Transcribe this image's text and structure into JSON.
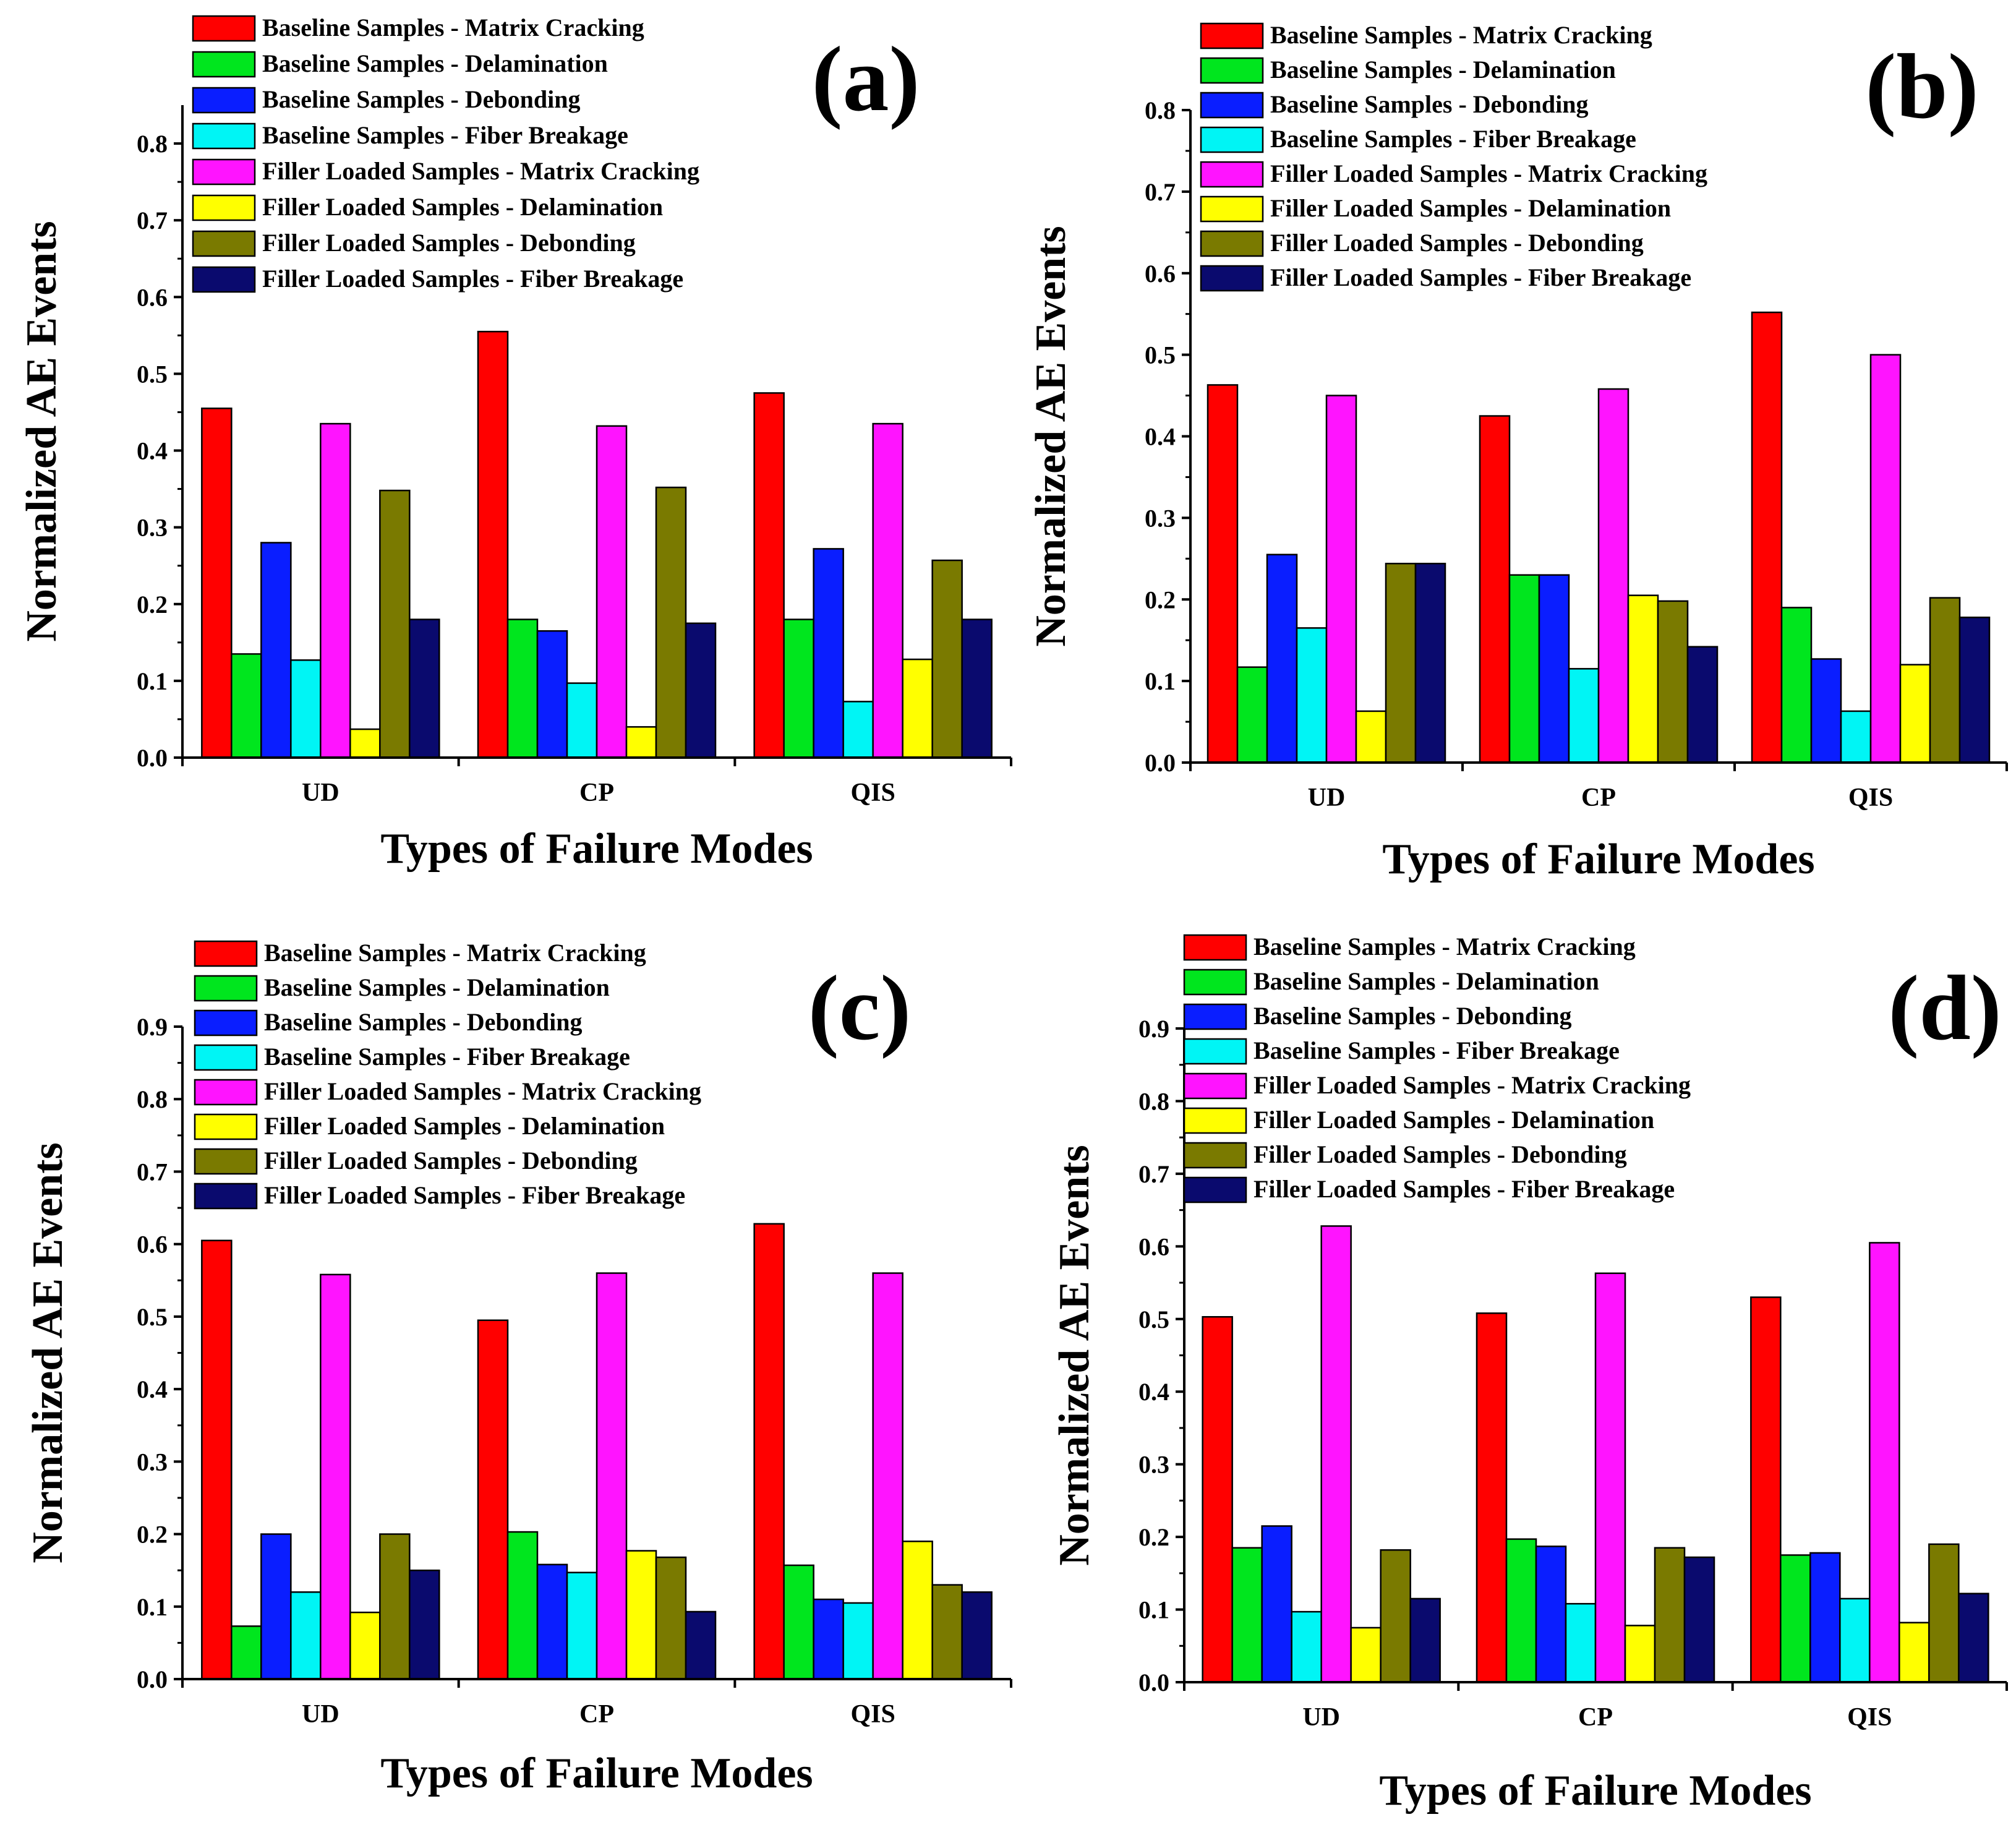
{
  "figure": {
    "name": "normalized-ae-events-bar-charts"
  },
  "colors": {
    "baseline_matrix": "#FF0000",
    "baseline_delam": "#00E61E",
    "baseline_debond": "#0A1EFF",
    "baseline_fiber": "#00F5F5",
    "filler_matrix": "#FF14FF",
    "filler_delam": "#FFFF00",
    "filler_debond": "#7A7A00",
    "filler_fiber": "#0A0A6E"
  },
  "chart_data": [
    {
      "type": "bar",
      "panel_label": "(a)",
      "categories": [
        "UD",
        "CP",
        "QIS"
      ],
      "xlabel": "Types of Failure Modes",
      "ylabel": "Normalized AE Events",
      "ylim": [
        0,
        0.85
      ],
      "yticks": [
        "0.0",
        "0.1",
        "0.2",
        "0.3",
        "0.4",
        "0.5",
        "0.6",
        "0.7",
        "0.8"
      ],
      "series": [
        {
          "name": "Baseline Samples - Matrix Cracking",
          "values": [
            0.455,
            0.555,
            0.475
          ]
        },
        {
          "name": "Baseline Samples - Delamination",
          "values": [
            0.135,
            0.18,
            0.18
          ]
        },
        {
          "name": "Baseline Samples - Debonding",
          "values": [
            0.28,
            0.165,
            0.272
          ]
        },
        {
          "name": "Baseline Samples - Fiber Breakage",
          "values": [
            0.127,
            0.097,
            0.073
          ]
        },
        {
          "name": "Filler Loaded Samples - Matrix Cracking",
          "values": [
            0.435,
            0.432,
            0.435
          ]
        },
        {
          "name": "Filler Loaded Samples - Delamination",
          "values": [
            0.037,
            0.04,
            0.128
          ]
        },
        {
          "name": "Filler Loaded Samples - Debonding",
          "values": [
            0.348,
            0.352,
            0.257
          ]
        },
        {
          "name": "Filler Loaded Samples - Fiber Breakage",
          "values": [
            0.18,
            0.175,
            0.18
          ]
        }
      ]
    },
    {
      "type": "bar",
      "panel_label": "(b)",
      "categories": [
        "UD",
        "CP",
        "QIS"
      ],
      "xlabel": "Types of Failure Modes",
      "ylabel": "Normalized AE Events",
      "ylim": [
        0,
        0.8
      ],
      "yticks": [
        "0.0",
        "0.1",
        "0.2",
        "0.3",
        "0.4",
        "0.5",
        "0.6",
        "0.7",
        "0.8"
      ],
      "series": [
        {
          "name": "Baseline Samples - Matrix Cracking",
          "values": [
            0.463,
            0.425,
            0.552
          ]
        },
        {
          "name": "Baseline Samples - Delamination",
          "values": [
            0.117,
            0.23,
            0.19
          ]
        },
        {
          "name": "Baseline Samples - Debonding",
          "values": [
            0.255,
            0.23,
            0.127
          ]
        },
        {
          "name": "Baseline Samples - Fiber Breakage",
          "values": [
            0.165,
            0.115,
            0.063
          ]
        },
        {
          "name": "Filler Loaded Samples - Matrix Cracking",
          "values": [
            0.45,
            0.458,
            0.5
          ]
        },
        {
          "name": "Filler Loaded Samples - Delamination",
          "values": [
            0.063,
            0.205,
            0.12
          ]
        },
        {
          "name": "Filler Loaded Samples - Debonding",
          "values": [
            0.244,
            0.198,
            0.202
          ]
        },
        {
          "name": "Filler Loaded Samples - Fiber Breakage",
          "values": [
            0.244,
            0.142,
            0.178
          ]
        }
      ]
    },
    {
      "type": "bar",
      "panel_label": "(c)",
      "categories": [
        "UD",
        "CP",
        "QIS"
      ],
      "xlabel": "Types of Failure Modes",
      "ylabel": "Normalized AE Events",
      "ylim": [
        0,
        0.9
      ],
      "yticks": [
        "0.0",
        "0.1",
        "0.2",
        "0.3",
        "0.4",
        "0.5",
        "0.6",
        "0.7",
        "0.8",
        "0.9"
      ],
      "series": [
        {
          "name": "Baseline Samples - Matrix Cracking",
          "values": [
            0.605,
            0.495,
            0.628
          ]
        },
        {
          "name": "Baseline Samples - Delamination",
          "values": [
            0.073,
            0.203,
            0.157
          ]
        },
        {
          "name": "Baseline Samples - Debonding",
          "values": [
            0.2,
            0.158,
            0.11
          ]
        },
        {
          "name": "Baseline Samples - Fiber Breakage",
          "values": [
            0.12,
            0.147,
            0.105
          ]
        },
        {
          "name": "Filler Loaded Samples - Matrix Cracking",
          "values": [
            0.558,
            0.56,
            0.56
          ]
        },
        {
          "name": "Filler Loaded Samples - Delamination",
          "values": [
            0.092,
            0.177,
            0.19
          ]
        },
        {
          "name": "Filler Loaded Samples - Debonding",
          "values": [
            0.2,
            0.168,
            0.13
          ]
        },
        {
          "name": "Filler Loaded Samples - Fiber Breakage",
          "values": [
            0.15,
            0.093,
            0.12
          ]
        }
      ]
    },
    {
      "type": "bar",
      "panel_label": "(d)",
      "categories": [
        "UD",
        "CP",
        "QIS"
      ],
      "xlabel": "Types of Failure Modes",
      "ylabel": "Normalized AE Events",
      "ylim": [
        0,
        0.9
      ],
      "yticks": [
        "0.0",
        "0.1",
        "0.2",
        "0.3",
        "0.4",
        "0.5",
        "0.6",
        "0.7",
        "0.8",
        "0.9"
      ],
      "series": [
        {
          "name": "Baseline Samples - Matrix Cracking",
          "values": [
            0.503,
            0.508,
            0.53
          ]
        },
        {
          "name": "Baseline Samples - Delamination",
          "values": [
            0.185,
            0.197,
            0.175
          ]
        },
        {
          "name": "Baseline Samples - Debonding",
          "values": [
            0.215,
            0.187,
            0.178
          ]
        },
        {
          "name": "Baseline Samples - Fiber Breakage",
          "values": [
            0.097,
            0.108,
            0.115
          ]
        },
        {
          "name": "Filler Loaded Samples - Matrix Cracking",
          "values": [
            0.628,
            0.563,
            0.605
          ]
        },
        {
          "name": "Filler Loaded Samples - Delamination",
          "values": [
            0.075,
            0.078,
            0.082
          ]
        },
        {
          "name": "Filler Loaded Samples - Debonding",
          "values": [
            0.182,
            0.185,
            0.19
          ]
        },
        {
          "name": "Filler Loaded Samples - Fiber Breakage",
          "values": [
            0.115,
            0.172,
            0.122
          ]
        }
      ]
    }
  ]
}
